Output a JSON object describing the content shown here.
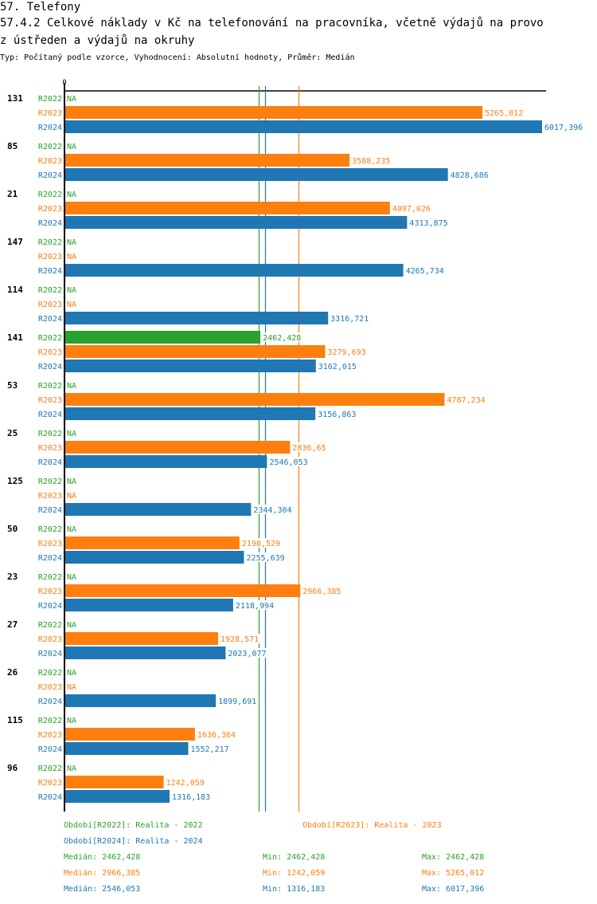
{
  "header": {
    "section_title": "57. Telefony",
    "chart_title_line1": "57.4.2 Celkové náklady v Kč na telefonování na pracovníka, včetně výdajů na provo",
    "chart_title_line2": "z ústředen a výdajů na okruhy",
    "subtitle": "Typ: Počítaný podle vzorce, Vyhodnocení: Absolutní hodnoty, Průměr: Medián"
  },
  "colors": {
    "R2022": "#2ca02c",
    "R2023": "#ff7f0e",
    "R2024": "#1f77b4",
    "axis": "#000000"
  },
  "chart_data": {
    "type": "bar",
    "orientation": "horizontal",
    "title": "57.4.2 Celkové náklady v Kč na telefonování na pracovníka, včetně výdajů na provoz ústředen a výdajů na okruhy",
    "xlabel": "",
    "ylabel": "",
    "x_tick_labels": [
      "0"
    ],
    "xlim": [
      0,
      6050
    ],
    "grid": false,
    "na_label": "NA",
    "categories": [
      "131",
      "85",
      "21",
      "147",
      "114",
      "141",
      "53",
      "25",
      "125",
      "50",
      "23",
      "27",
      "26",
      "115",
      "96"
    ],
    "series": [
      {
        "name": "R2022",
        "values": [
          null,
          null,
          null,
          null,
          null,
          2462.428,
          null,
          null,
          null,
          null,
          null,
          null,
          null,
          null,
          null
        ],
        "labels": [
          "NA",
          "NA",
          "NA",
          "NA",
          "NA",
          "2462,428",
          "NA",
          "NA",
          "NA",
          "NA",
          "NA",
          "NA",
          "NA",
          "NA",
          "NA"
        ]
      },
      {
        "name": "R2023",
        "values": [
          5265.012,
          3588.235,
          4097.026,
          null,
          null,
          3279.693,
          4787.234,
          2836.65,
          null,
          2198.529,
          2966.385,
          1928.571,
          null,
          1636.364,
          1242.059
        ],
        "labels": [
          "5265,012",
          "3588,235",
          "4097,026",
          "NA",
          "NA",
          "3279,693",
          "4787,234",
          "2836,65",
          "NA",
          "2198,529",
          "2966,385",
          "1928,571",
          "NA",
          "1636,364",
          "1242,059"
        ]
      },
      {
        "name": "R2024",
        "values": [
          6017.396,
          4828.686,
          4313.875,
          4265.734,
          3316.721,
          3162.015,
          3156.863,
          2546.053,
          2344.304,
          2255.639,
          2118.994,
          2023.077,
          1899.691,
          1552.217,
          1316.183
        ],
        "labels": [
          "6017,396",
          "4828,686",
          "4313,875",
          "4265,734",
          "3316,721",
          "3162,015",
          "3156,863",
          "2546,053",
          "2344,304",
          "2255,639",
          "2118,994",
          "2023,077",
          "1899,691",
          "1552,217",
          "1316,183"
        ]
      }
    ],
    "reference_lines": [
      {
        "series": "R2022",
        "type": "median",
        "value": 2462.428
      },
      {
        "series": "R2024",
        "type": "median",
        "value": 2546.053
      },
      {
        "series": "R2023",
        "type": "median",
        "value": 2966.385
      }
    ],
    "legend": {
      "placement": "bottom",
      "entries": [
        {
          "series": "R2022",
          "text": "Období[R2022]: Realita - 2022"
        },
        {
          "series": "R2023",
          "text": "Období[R2023]: Realita - 2023"
        },
        {
          "series": "R2024",
          "text": "Období[R2024]: Realita - 2024"
        }
      ]
    },
    "stats": [
      {
        "series": "R2022",
        "median": "Medián: 2462,428",
        "min": "Min: 2462,428",
        "max": "Max: 2462,428"
      },
      {
        "series": "R2023",
        "median": "Medián: 2966,385",
        "min": "Min: 1242,059",
        "max": "Max: 5265,012"
      },
      {
        "series": "R2024",
        "median": "Medián: 2546,053",
        "min": "Min: 1316,183",
        "max": "Max: 6017,396"
      }
    ]
  }
}
